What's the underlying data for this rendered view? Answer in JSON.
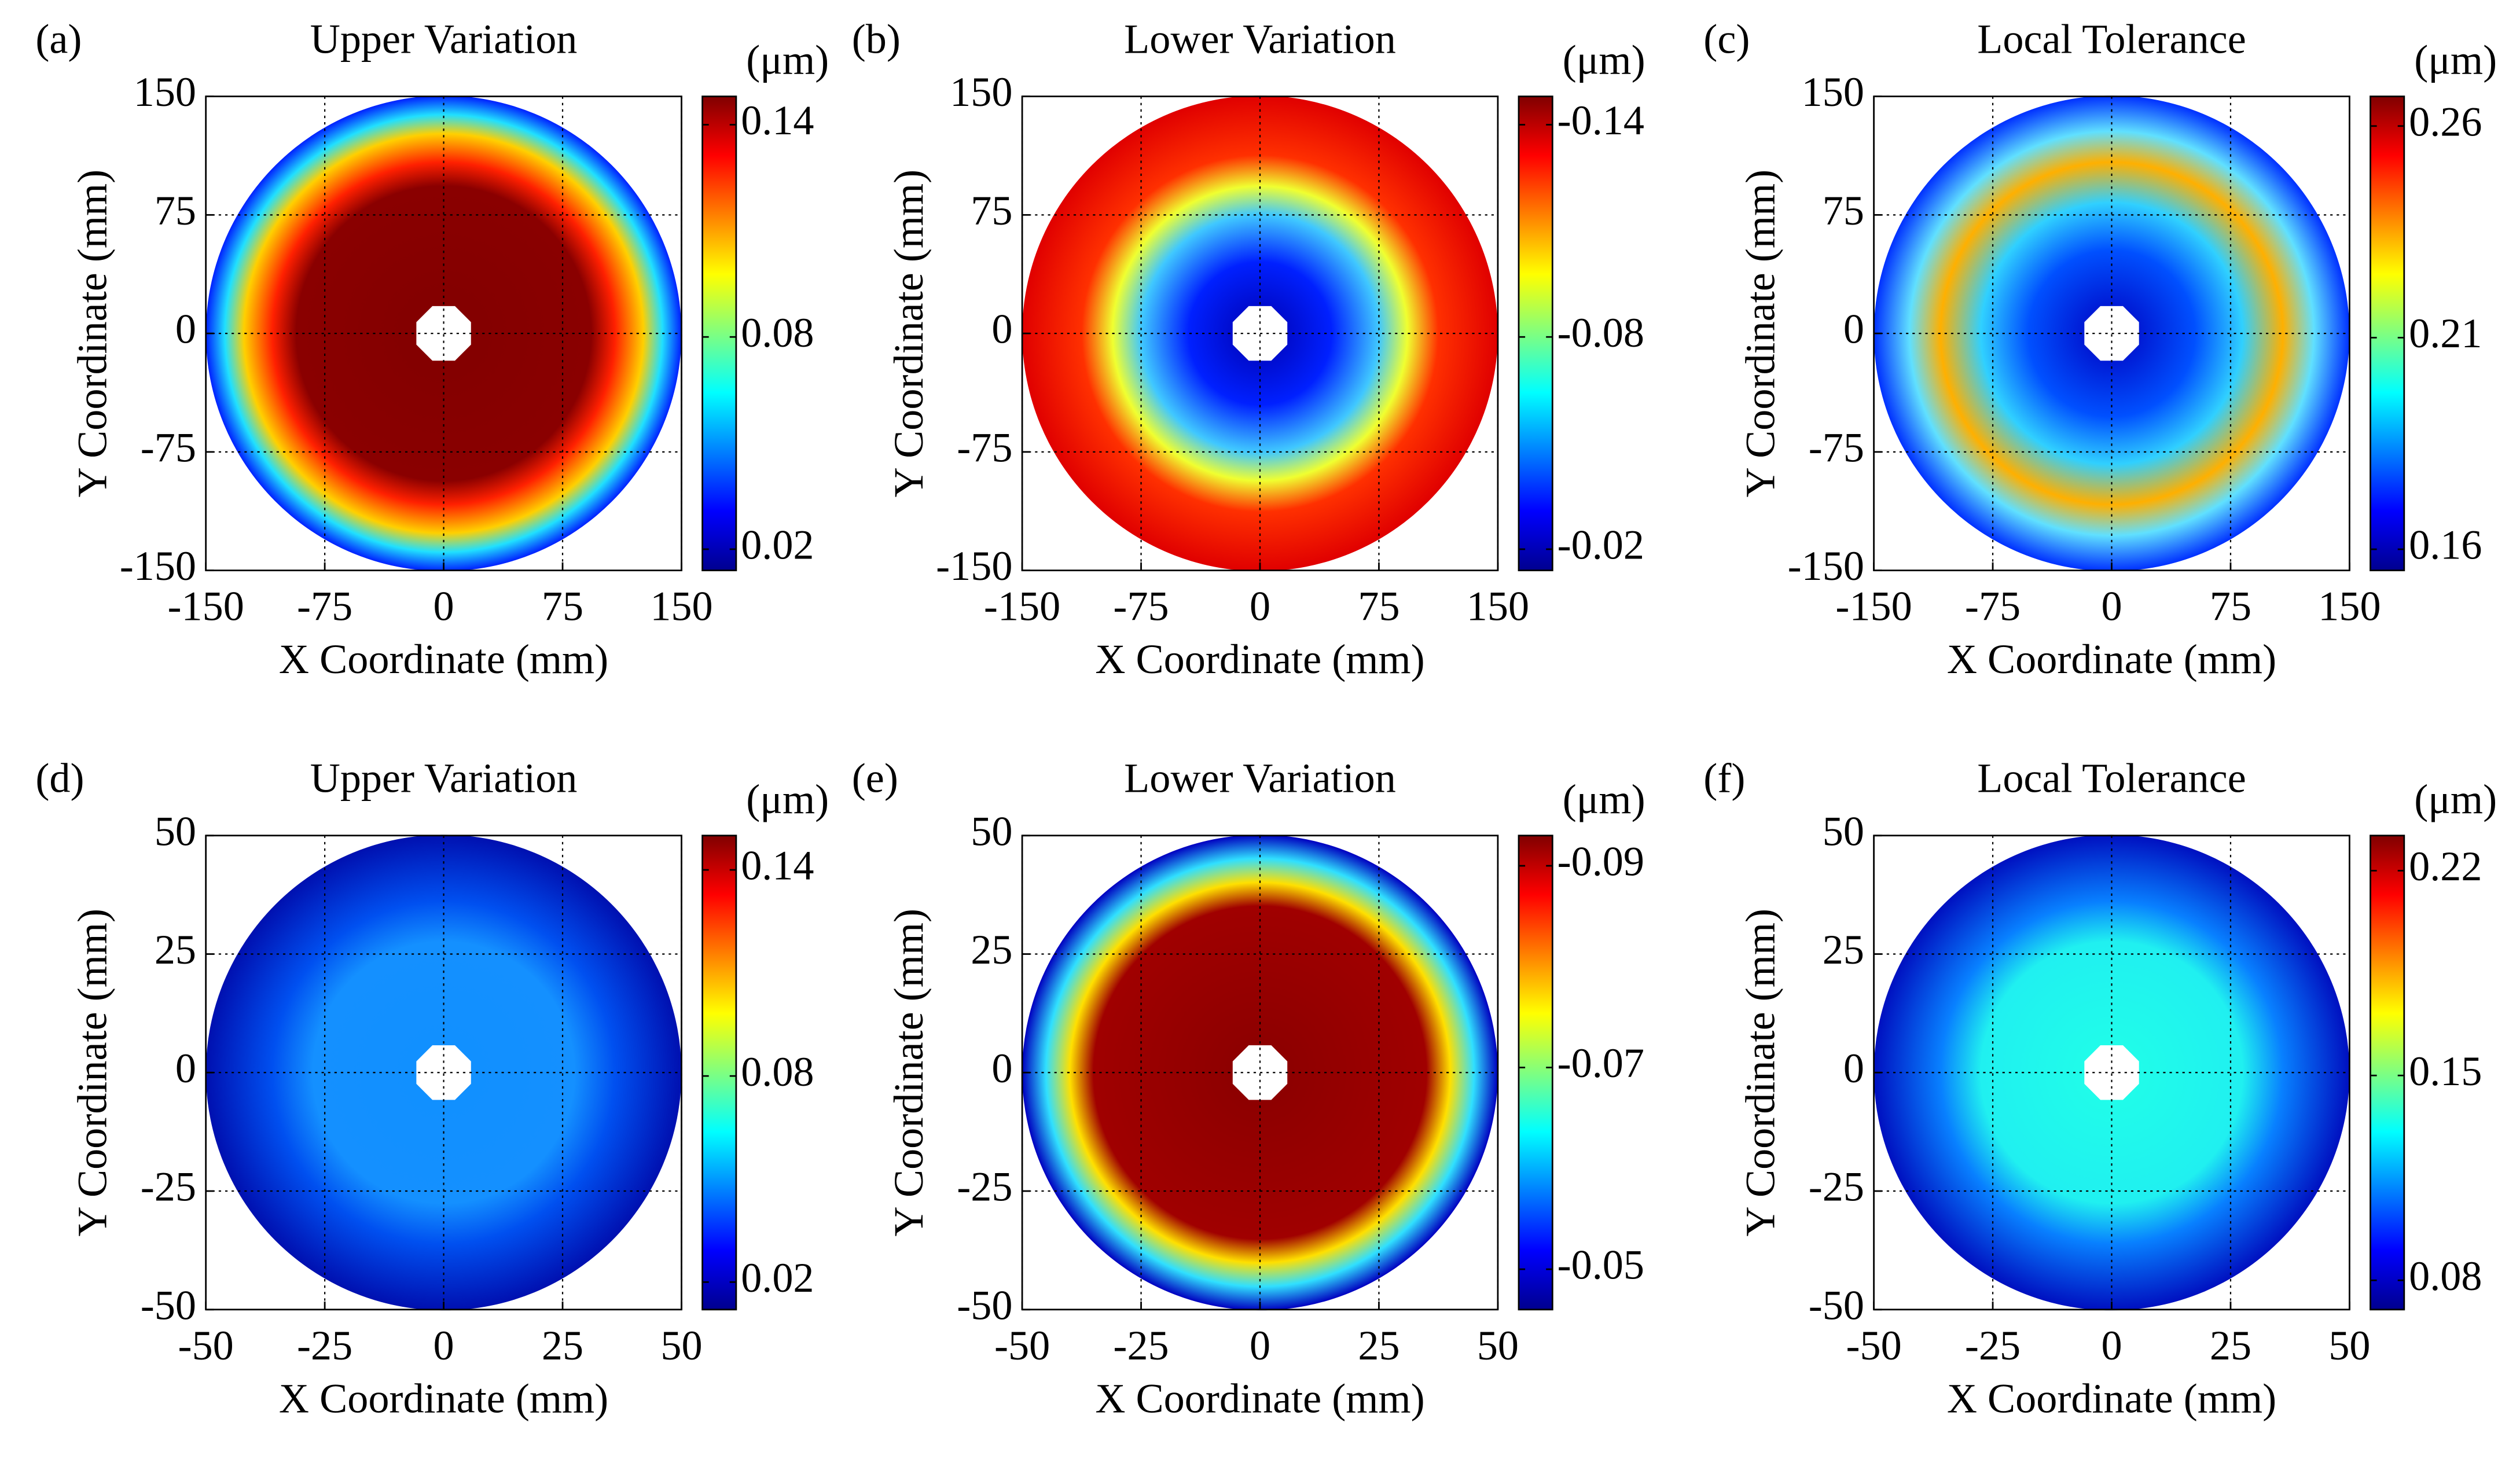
{
  "chart_data": [
    {
      "type": "heatmap",
      "panel_label": "(a)",
      "title": "Upper Variation",
      "xlabel": "X Coordinate (mm)",
      "ylabel": "Y Coordinate (mm)",
      "xlim": [
        -150,
        150
      ],
      "ylim": [
        -150,
        150
      ],
      "xticks": [
        -150,
        -75,
        0,
        75,
        150
      ],
      "yticks": [
        -150,
        -75,
        0,
        75,
        150
      ],
      "grid": true,
      "colorbar": {
        "label": "(μm)",
        "clim": [
          0.014,
          0.148
        ],
        "ticks": [
          0.02,
          0.08,
          0.14
        ]
      }
    },
    {
      "type": "heatmap",
      "panel_label": "(b)",
      "title": "Lower Variation",
      "xlabel": "X Coordinate (mm)",
      "ylabel": "Y Coordinate (mm)",
      "xlim": [
        -150,
        150
      ],
      "ylim": [
        -150,
        150
      ],
      "xticks": [
        -150,
        -75,
        0,
        75,
        150
      ],
      "yticks": [
        -150,
        -75,
        0,
        75,
        150
      ],
      "grid": true,
      "colorbar": {
        "label": "(μm)",
        "clim": [
          -0.014,
          -0.148
        ],
        "ticks": [
          -0.02,
          -0.08,
          -0.14
        ]
      }
    },
    {
      "type": "heatmap",
      "panel_label": "(c)",
      "title": "Local Tolerance",
      "xlabel": "X Coordinate (mm)",
      "ylabel": "Y Coordinate (mm)",
      "xlim": [
        -150,
        150
      ],
      "ylim": [
        -150,
        150
      ],
      "xticks": [
        -150,
        -75,
        0,
        75,
        150
      ],
      "yticks": [
        -150,
        -75,
        0,
        75,
        150
      ],
      "grid": true,
      "colorbar": {
        "label": "(μm)",
        "clim": [
          0.155,
          0.267
        ],
        "ticks": [
          0.16,
          0.21,
          0.26
        ]
      }
    },
    {
      "type": "heatmap",
      "panel_label": "(d)",
      "title": "Upper Variation",
      "xlabel": "X Coordinate (mm)",
      "ylabel": "Y Coordinate (mm)",
      "xlim": [
        -50,
        50
      ],
      "ylim": [
        -50,
        50
      ],
      "xticks": [
        -50,
        -25,
        0,
        25,
        50
      ],
      "yticks": [
        -50,
        -25,
        0,
        25,
        50
      ],
      "grid": true,
      "colorbar": {
        "label": "(μm)",
        "clim": [
          0.012,
          0.15
        ],
        "ticks": [
          0.02,
          0.08,
          0.14
        ]
      }
    },
    {
      "type": "heatmap",
      "panel_label": "(e)",
      "title": "Lower Variation",
      "xlabel": "X Coordinate (mm)",
      "ylabel": "Y Coordinate (mm)",
      "xlim": [
        -50,
        50
      ],
      "ylim": [
        -50,
        50
      ],
      "xticks": [
        -50,
        -25,
        0,
        25,
        50
      ],
      "yticks": [
        -50,
        -25,
        0,
        25,
        50
      ],
      "grid": true,
      "colorbar": {
        "label": "(μm)",
        "clim": [
          -0.046,
          -0.093
        ],
        "ticks": [
          -0.05,
          -0.07,
          -0.09
        ]
      }
    },
    {
      "type": "heatmap",
      "panel_label": "(f)",
      "title": "Local Tolerance",
      "xlabel": "X Coordinate (mm)",
      "ylabel": "Y Coordinate (mm)",
      "xlim": [
        -50,
        50
      ],
      "ylim": [
        -50,
        50
      ],
      "xticks": [
        -50,
        -25,
        0,
        25,
        50
      ],
      "yticks": [
        -50,
        -25,
        0,
        25,
        50
      ],
      "grid": true,
      "colorbar": {
        "label": "(μm)",
        "clim": [
          0.07,
          0.232
        ],
        "ticks": [
          0.08,
          0.15,
          0.22
        ]
      }
    }
  ]
}
